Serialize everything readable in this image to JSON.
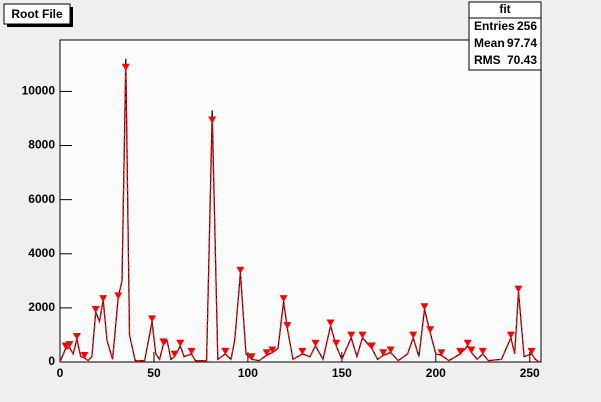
{
  "chart_data": {
    "type": "line",
    "title": "Root File",
    "x": [
      0,
      3,
      5,
      7,
      9,
      11,
      13,
      15,
      17,
      19,
      21,
      23,
      25,
      28,
      31,
      33,
      35,
      37,
      40,
      45,
      49,
      51,
      53,
      55,
      57,
      59,
      61,
      64,
      66,
      70,
      72,
      78,
      81,
      84,
      88,
      91,
      93,
      96,
      99,
      102,
      106,
      110,
      113,
      116,
      119,
      121,
      124,
      129,
      133,
      136,
      140,
      144,
      147,
      150,
      155,
      158,
      161,
      166,
      169,
      172,
      176,
      180,
      185,
      188,
      191,
      194,
      197,
      200,
      203,
      207,
      213,
      217,
      219,
      222,
      225,
      228,
      235,
      240,
      242,
      244,
      247,
      251,
      253,
      255
    ],
    "series": [
      {
        "color": "#000000",
        "values": [
          0,
          500,
          550,
          300,
          850,
          200,
          150,
          50,
          200,
          1850,
          1500,
          2300,
          800,
          100,
          2400,
          3000,
          11200,
          1000,
          50,
          50,
          1500,
          300,
          100,
          650,
          800,
          100,
          200,
          600,
          200,
          300,
          50,
          50,
          9300,
          100,
          300,
          100,
          800,
          3300,
          300,
          100,
          50,
          250,
          350,
          500,
          2250,
          1250,
          100,
          300,
          200,
          600,
          100,
          1350,
          600,
          100,
          900,
          200,
          900,
          500,
          100,
          250,
          350,
          50,
          300,
          900,
          200,
          1950,
          1100,
          300,
          250,
          50,
          300,
          600,
          350,
          100,
          300,
          50,
          100,
          900,
          300,
          2600,
          200,
          300,
          100,
          0
        ]
      },
      {
        "color": "#ff0000",
        "values": [
          0,
          480,
          530,
          300,
          820,
          200,
          150,
          50,
          200,
          1800,
          1500,
          2250,
          800,
          100,
          2350,
          3000,
          10900,
          1000,
          50,
          50,
          1450,
          300,
          100,
          630,
          780,
          100,
          200,
          580,
          200,
          290,
          50,
          50,
          8900,
          100,
          290,
          100,
          800,
          3250,
          300,
          100,
          50,
          240,
          340,
          500,
          2200,
          1250,
          100,
          290,
          200,
          580,
          100,
          1320,
          600,
          100,
          880,
          200,
          880,
          490,
          100,
          240,
          340,
          50,
          300,
          880,
          200,
          1900,
          1100,
          300,
          240,
          50,
          290,
          580,
          340,
          100,
          290,
          50,
          100,
          880,
          300,
          2550,
          200,
          290,
          100,
          0
        ]
      }
    ],
    "markers": {
      "color": "#ff0000",
      "x": [
        3,
        5,
        9,
        13,
        19,
        23,
        31,
        35,
        49,
        55,
        61,
        64,
        70,
        81,
        88,
        96,
        102,
        110,
        113,
        119,
        121,
        129,
        136,
        144,
        147,
        155,
        161,
        166,
        172,
        176,
        188,
        194,
        197,
        203,
        213,
        217,
        219,
        225,
        240,
        244,
        251
      ],
      "values": [
        500,
        550,
        850,
        150,
        1850,
        2250,
        2350,
        10800,
        1500,
        650,
        200,
        600,
        300,
        8850,
        300,
        3300,
        100,
        250,
        350,
        2250,
        1250,
        300,
        600,
        1350,
        600,
        900,
        900,
        500,
        250,
        350,
        900,
        1950,
        1100,
        250,
        300,
        600,
        350,
        300,
        900,
        2600,
        300
      ]
    },
    "xlim": [
      0,
      256
    ],
    "ylim": [
      0,
      11900
    ],
    "xticks": [
      0,
      50,
      100,
      150,
      200,
      250
    ],
    "yticks": [
      0,
      2000,
      4000,
      6000,
      8000,
      10000
    ],
    "stats": {
      "title": "fit",
      "rows": [
        {
          "label": "Entries",
          "value": 256
        },
        {
          "label": "Mean",
          "value": 97.74
        },
        {
          "label": "RMS",
          "value": 70.43
        }
      ]
    }
  }
}
